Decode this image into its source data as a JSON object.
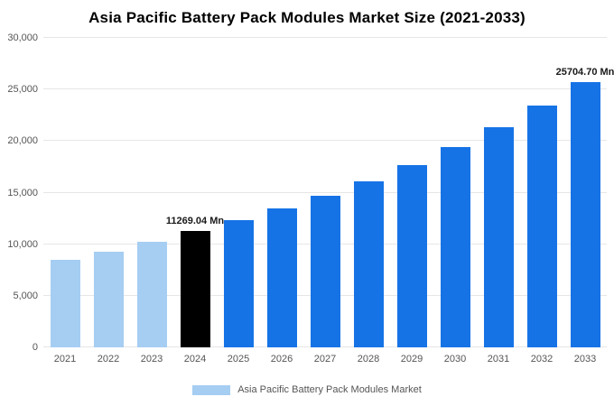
{
  "title": "Asia Pacific Battery Pack Modules Market Size (2021-2033)",
  "legend": {
    "label": "Asia Pacific Battery Pack Modules Market",
    "swatch_color": "#a6cdf2"
  },
  "colors": {
    "historical_bar": "#a6cdf2",
    "current_year_bar": "#000000",
    "forecast_bar": "#1673e6",
    "gridline": "#e6e6e6",
    "axis_text": "#555555"
  },
  "chart_data": {
    "type": "bar",
    "title": "Asia Pacific Battery Pack Modules Market Size (2021-2033)",
    "xlabel": "",
    "ylabel": "",
    "ylim": [
      0,
      30000
    ],
    "grid": true,
    "legend_position": "bottom",
    "categories": [
      "2021",
      "2022",
      "2023",
      "2024",
      "2025",
      "2026",
      "2027",
      "2028",
      "2029",
      "2030",
      "2031",
      "2032",
      "2033"
    ],
    "values": [
      8450,
      9300,
      10200,
      11269.04,
      12350,
      13450,
      14700,
      16100,
      17700,
      19450,
      21350,
      23400,
      25704.7
    ],
    "bar_colors": [
      "#a6cdf2",
      "#a6cdf2",
      "#a6cdf2",
      "#000000",
      "#1673e6",
      "#1673e6",
      "#1673e6",
      "#1673e6",
      "#1673e6",
      "#1673e6",
      "#1673e6",
      "#1673e6",
      "#1673e6"
    ],
    "annotations": [
      {
        "index": 3,
        "label": "11269.04 Mn"
      },
      {
        "index": 12,
        "label": "25704.70 Mn"
      }
    ],
    "yticks": [
      {
        "value": 0,
        "label": "0"
      },
      {
        "value": 5000,
        "label": "5,000"
      },
      {
        "value": 10000,
        "label": "10,000"
      },
      {
        "value": 15000,
        "label": "15,000"
      },
      {
        "value": 20000,
        "label": "20,000"
      },
      {
        "value": 25000,
        "label": "25,000"
      },
      {
        "value": 30000,
        "label": "30,000"
      }
    ]
  }
}
